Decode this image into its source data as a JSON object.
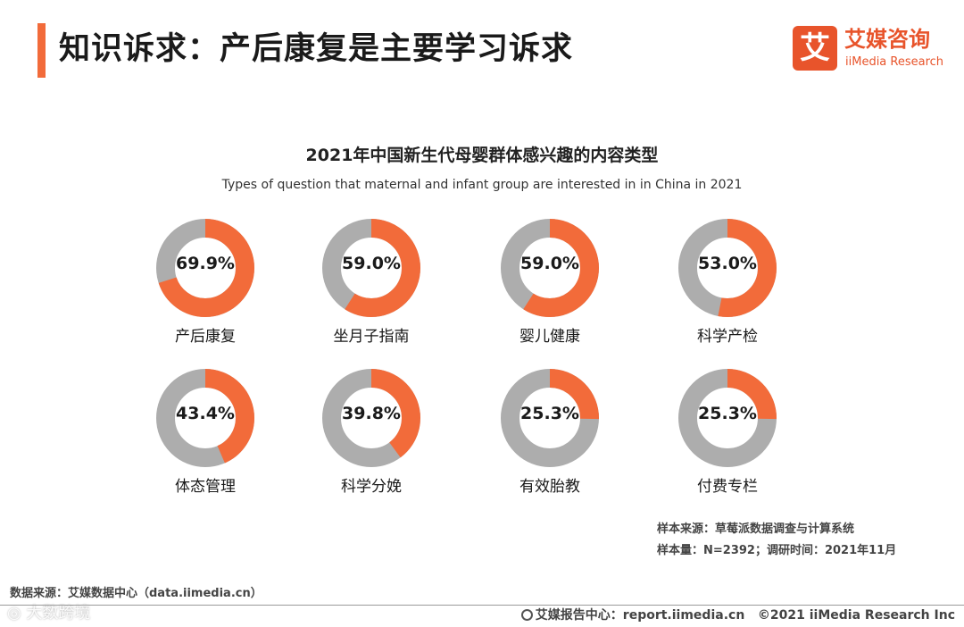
{
  "header": {
    "title": "知识诉求：产后康复是主要学习诉求",
    "logo_mark": "艾",
    "logo_cn": "艾媒咨询",
    "logo_en": "iiMedia Research"
  },
  "chart_data": {
    "type": "pie",
    "variant": "donut",
    "title": "2021年中国新生代母婴群体感兴趣的内容类型",
    "subtitle": "Types of question that maternal and infant group are interested in in China in 2021",
    "unit": "%",
    "categories": [
      "产后康复",
      "坐月子指南",
      "婴儿健康",
      "科学产检",
      "体态管理",
      "科学分娩",
      "有效胎教",
      "付费专栏"
    ],
    "values": [
      69.9,
      59.0,
      59.0,
      53.0,
      43.4,
      39.8,
      25.3,
      25.3
    ],
    "value_labels": [
      "69.9%",
      "59.0%",
      "59.0%",
      "53.0%",
      "43.4%",
      "39.8%",
      "25.3%",
      "25.3%"
    ],
    "max": 100,
    "colors": {
      "value": "#f26b3a",
      "remainder": "#adadad"
    }
  },
  "notes": {
    "sample_source": "样本来源：草莓派数据调查与计算系统",
    "sample_size": "样本量：N=2392；调研时间：2021年11月"
  },
  "source": "数据来源：艾媒数据中心（data.iimedia.cn）",
  "footer": {
    "report_center": "艾媒报告中心：report.iimedia.cn",
    "copyright": "©2021  iiMedia Research  Inc"
  },
  "watermark": "◎ 大数跨境",
  "colors": {
    "accent": "#f26b3a",
    "brand": "#e8542b"
  }
}
